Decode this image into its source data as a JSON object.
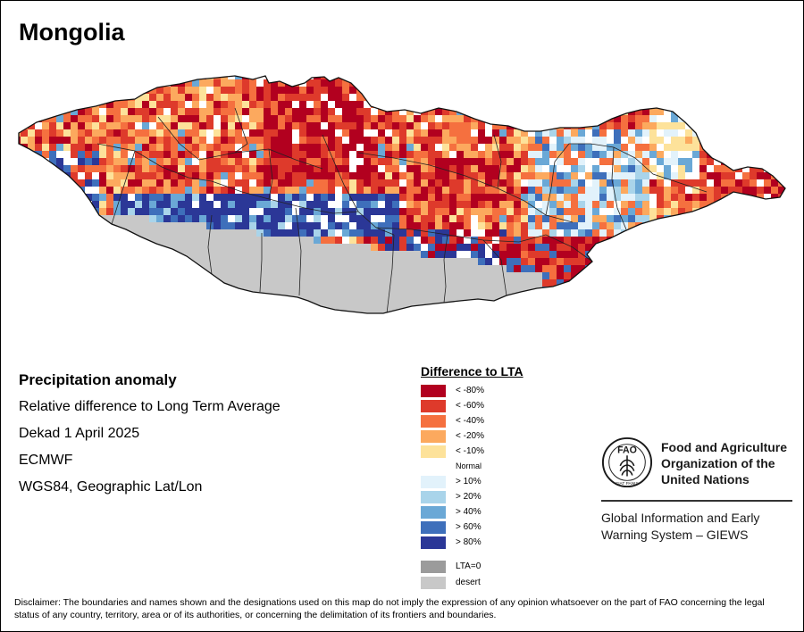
{
  "title": "Mongolia",
  "info": {
    "heading": "Precipitation anomaly",
    "subtitle": "Relative difference to Long Term Average",
    "period": "Dekad 1 April 2025",
    "source": "ECMWF",
    "projection": "WGS84, Geographic Lat/Lon"
  },
  "legend": {
    "title": "Difference to LTA",
    "classes": [
      {
        "label": "< -80%",
        "color": "#b2001f"
      },
      {
        "label": "< -60%",
        "color": "#de3a2b"
      },
      {
        "label": "< -40%",
        "color": "#f5703f"
      },
      {
        "label": "< -20%",
        "color": "#fca95e"
      },
      {
        "label": "< -10%",
        "color": "#fde29a"
      },
      {
        "label": "Normal",
        "color": "#ffffff"
      },
      {
        "label": "> 10%",
        "color": "#e2f2fb"
      },
      {
        "label": "> 20%",
        "color": "#a9d4ea"
      },
      {
        "label": "> 40%",
        "color": "#6aa8d6"
      },
      {
        "label": "> 60%",
        "color": "#3e6fbb"
      },
      {
        "label": "> 80%",
        "color": "#2b3797"
      },
      {
        "label": "LTA=0",
        "color": "#9b9b9b"
      },
      {
        "label": "desert",
        "color": "#c8c8c8"
      }
    ]
  },
  "fao": {
    "name_line1": "Food and Agriculture",
    "name_line2": "Organization of the",
    "name_line3": "United Nations",
    "giews_line1": "Global Information and Early",
    "giews_line2": "Warning System – GIEWS",
    "emblem_text": "FAO",
    "emblem_motto": "FIAT PANIS"
  },
  "disclaimer": "Disclaimer: The boundaries and names shown and the designations used on this map do not imply the expression of any opinion whatsoever on the part of FAO concerning the legal status of any country, territory, area or of its authorities, or concerning the delimitation of its frontiers and boundaries."
}
